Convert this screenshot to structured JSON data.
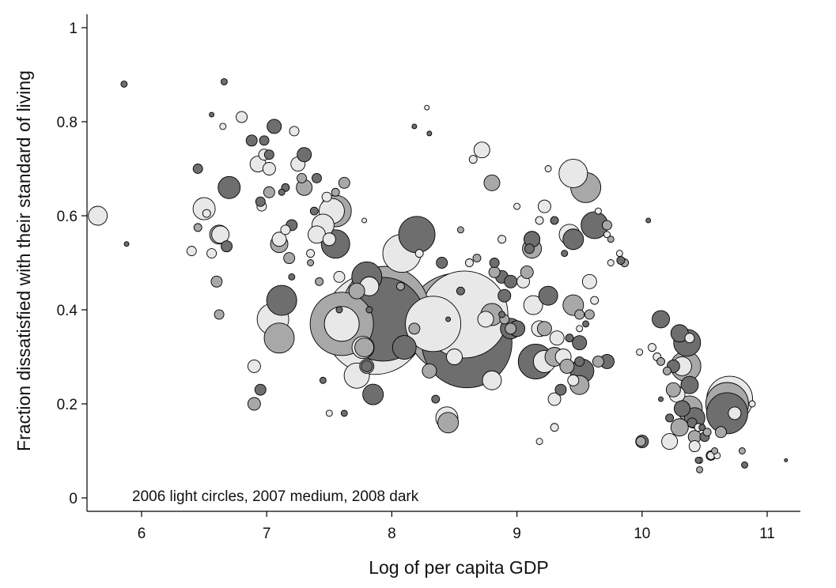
{
  "chart_data": {
    "type": "scatter",
    "title": "",
    "xlabel": "Log of per capita GDP",
    "ylabel": "Fraction dissatisfied with their standard of living",
    "annotation": "2006 light circles, 2007 medium, 2008 dark",
    "xlim": [
      5.6,
      11.3
    ],
    "ylim": [
      -0.03,
      1.03
    ],
    "xticks": [
      6,
      7,
      8,
      9,
      10,
      11
    ],
    "yticks": [
      0,
      0.2,
      0.4,
      0.6,
      0.8,
      1
    ],
    "ytick_labels": [
      "0",
      "0.2",
      "0.4",
      "0.6",
      "0.8",
      "1"
    ],
    "grid": false,
    "bubble_size_encoding": "population",
    "series": [
      {
        "name": "2006",
        "color": "#e8e8e8",
        "points": [
          [
            5.65,
            0.6,
            12
          ],
          [
            6.5,
            0.615,
            14
          ],
          [
            6.52,
            0.605,
            5
          ],
          [
            6.63,
            0.56,
            11
          ],
          [
            6.56,
            0.52,
            6
          ],
          [
            6.4,
            0.525,
            6
          ],
          [
            6.8,
            0.81,
            7
          ],
          [
            6.65,
            0.79,
            4
          ],
          [
            6.93,
            0.71,
            10
          ],
          [
            6.98,
            0.73,
            7
          ],
          [
            7.02,
            0.7,
            8
          ],
          [
            6.96,
            0.62,
            6
          ],
          [
            7.1,
            0.55,
            9
          ],
          [
            7.15,
            0.57,
            6
          ],
          [
            7.22,
            0.78,
            6
          ],
          [
            7.25,
            0.71,
            9
          ],
          [
            7.35,
            0.52,
            5
          ],
          [
            7.4,
            0.56,
            11
          ],
          [
            7.45,
            0.58,
            14
          ],
          [
            7.5,
            0.55,
            8
          ],
          [
            7.48,
            0.64,
            6
          ],
          [
            7.52,
            0.61,
            16
          ],
          [
            7.58,
            0.47,
            7
          ],
          [
            7.05,
            0.38,
            20
          ],
          [
            6.9,
            0.28,
            8
          ],
          [
            7.86,
            0.37,
            64
          ],
          [
            7.6,
            0.37,
            22
          ],
          [
            7.77,
            0.32,
            14
          ],
          [
            7.72,
            0.26,
            16
          ],
          [
            7.82,
            0.45,
            12
          ],
          [
            7.5,
            0.18,
            4
          ],
          [
            7.78,
            0.59,
            3
          ],
          [
            8.08,
            0.52,
            24
          ],
          [
            8.28,
            0.83,
            3
          ],
          [
            8.22,
            0.52,
            5
          ],
          [
            8.33,
            0.37,
            35
          ],
          [
            8.58,
            0.39,
            55
          ],
          [
            8.44,
            0.17,
            14
          ],
          [
            8.5,
            0.3,
            10
          ],
          [
            8.62,
            0.5,
            5
          ],
          [
            8.75,
            0.38,
            10
          ],
          [
            8.8,
            0.25,
            12
          ],
          [
            8.65,
            0.72,
            5
          ],
          [
            8.72,
            0.74,
            10
          ],
          [
            8.88,
            0.55,
            5
          ],
          [
            9.0,
            0.62,
            4
          ],
          [
            9.05,
            0.46,
            8
          ],
          [
            9.13,
            0.41,
            12
          ],
          [
            9.18,
            0.36,
            10
          ],
          [
            9.22,
            0.29,
            14
          ],
          [
            9.25,
            0.7,
            4
          ],
          [
            9.22,
            0.62,
            8
          ],
          [
            9.18,
            0.59,
            5
          ],
          [
            9.12,
            0.55,
            10
          ],
          [
            9.32,
            0.34,
            9
          ],
          [
            9.37,
            0.3,
            10
          ],
          [
            9.42,
            0.56,
            13
          ],
          [
            9.45,
            0.25,
            7
          ],
          [
            9.5,
            0.36,
            4
          ],
          [
            9.45,
            0.69,
            18
          ],
          [
            9.58,
            0.46,
            9
          ],
          [
            9.62,
            0.42,
            5
          ],
          [
            9.65,
            0.61,
            4
          ],
          [
            9.72,
            0.56,
            4
          ],
          [
            9.82,
            0.52,
            4
          ],
          [
            9.75,
            0.5,
            4
          ],
          [
            9.18,
            0.12,
            4
          ],
          [
            9.3,
            0.15,
            5
          ],
          [
            9.3,
            0.21,
            8
          ],
          [
            9.98,
            0.31,
            4
          ],
          [
            10.08,
            0.32,
            5
          ],
          [
            10.12,
            0.3,
            5
          ],
          [
            10.22,
            0.12,
            10
          ],
          [
            10.28,
            0.22,
            10
          ],
          [
            10.32,
            0.28,
            12
          ],
          [
            10.38,
            0.34,
            6
          ],
          [
            10.45,
            0.15,
            5
          ],
          [
            10.42,
            0.11,
            7
          ],
          [
            10.55,
            0.09,
            5
          ],
          [
            10.6,
            0.09,
            4
          ],
          [
            10.7,
            0.21,
            29
          ],
          [
            10.74,
            0.18,
            8
          ],
          [
            10.88,
            0.2,
            4
          ],
          [
            10.46,
            0.08,
            4
          ]
        ]
      },
      {
        "name": "2007",
        "color": "#a8a8a8",
        "points": [
          [
            6.45,
            0.575,
            5
          ],
          [
            6.62,
            0.56,
            12
          ],
          [
            6.6,
            0.46,
            7
          ],
          [
            6.62,
            0.39,
            6
          ],
          [
            7.1,
            0.54,
            11
          ],
          [
            7.18,
            0.51,
            7
          ],
          [
            7.3,
            0.66,
            10
          ],
          [
            7.28,
            0.68,
            6
          ],
          [
            7.02,
            0.65,
            7
          ],
          [
            7.1,
            0.34,
            19
          ],
          [
            6.9,
            0.2,
            8
          ],
          [
            7.35,
            0.5,
            4
          ],
          [
            7.55,
            0.61,
            20
          ],
          [
            7.42,
            0.46,
            5
          ],
          [
            7.62,
            0.67,
            7
          ],
          [
            7.55,
            0.65,
            5
          ],
          [
            7.78,
            0.32,
            12
          ],
          [
            7.8,
            0.28,
            9
          ],
          [
            7.6,
            0.37,
            40
          ],
          [
            7.72,
            0.44,
            10
          ],
          [
            7.95,
            0.4,
            55
          ],
          [
            8.07,
            0.45,
            5
          ],
          [
            8.18,
            0.36,
            7
          ],
          [
            8.3,
            0.27,
            9
          ],
          [
            8.52,
            0.37,
            64
          ],
          [
            8.45,
            0.16,
            13
          ],
          [
            8.55,
            0.57,
            4
          ],
          [
            8.68,
            0.51,
            5
          ],
          [
            8.82,
            0.48,
            7
          ],
          [
            8.8,
            0.67,
            10
          ],
          [
            8.8,
            0.39,
            14
          ],
          [
            8.9,
            0.38,
            6
          ],
          [
            8.95,
            0.36,
            7
          ],
          [
            9.08,
            0.48,
            8
          ],
          [
            9.12,
            0.53,
            12
          ],
          [
            9.22,
            0.36,
            9
          ],
          [
            9.3,
            0.3,
            12
          ],
          [
            9.4,
            0.28,
            9
          ],
          [
            9.45,
            0.41,
            13
          ],
          [
            9.5,
            0.39,
            6
          ],
          [
            9.55,
            0.66,
            19
          ],
          [
            9.5,
            0.24,
            12
          ],
          [
            9.58,
            0.39,
            6
          ],
          [
            9.65,
            0.29,
            7
          ],
          [
            9.72,
            0.58,
            6
          ],
          [
            9.75,
            0.55,
            4
          ],
          [
            9.86,
            0.5,
            5
          ],
          [
            9.99,
            0.12,
            6
          ],
          [
            10.15,
            0.29,
            5
          ],
          [
            10.2,
            0.27,
            5
          ],
          [
            10.25,
            0.23,
            9
          ],
          [
            10.3,
            0.15,
            11
          ],
          [
            10.35,
            0.28,
            19
          ],
          [
            10.38,
            0.19,
            16
          ],
          [
            10.42,
            0.13,
            8
          ],
          [
            10.46,
            0.06,
            4
          ],
          [
            10.52,
            0.14,
            5
          ],
          [
            10.58,
            0.1,
            4
          ],
          [
            10.63,
            0.14,
            7
          ],
          [
            10.68,
            0.2,
            27
          ],
          [
            10.8,
            0.1,
            4
          ]
        ]
      },
      {
        "name": "2008",
        "color": "#6e6e6e",
        "points": [
          [
            5.86,
            0.88,
            4
          ],
          [
            5.88,
            0.54,
            3
          ],
          [
            6.45,
            0.7,
            6
          ],
          [
            6.56,
            0.815,
            3
          ],
          [
            6.66,
            0.885,
            4
          ],
          [
            6.7,
            0.66,
            14
          ],
          [
            6.68,
            0.535,
            7
          ],
          [
            6.88,
            0.76,
            7
          ],
          [
            6.95,
            0.63,
            6
          ],
          [
            6.98,
            0.76,
            6
          ],
          [
            7.02,
            0.73,
            6
          ],
          [
            7.06,
            0.79,
            9
          ],
          [
            7.12,
            0.42,
            19
          ],
          [
            7.12,
            0.65,
            4
          ],
          [
            7.15,
            0.66,
            5
          ],
          [
            7.2,
            0.58,
            7
          ],
          [
            7.2,
            0.47,
            4
          ],
          [
            7.3,
            0.73,
            9
          ],
          [
            7.38,
            0.61,
            5
          ],
          [
            7.4,
            0.68,
            6
          ],
          [
            7.55,
            0.54,
            18
          ],
          [
            7.62,
            0.18,
            4
          ],
          [
            7.58,
            0.4,
            4
          ],
          [
            7.45,
            0.25,
            4
          ],
          [
            6.95,
            0.23,
            7
          ],
          [
            7.8,
            0.47,
            19
          ],
          [
            7.82,
            0.4,
            4
          ],
          [
            7.85,
            0.22,
            13
          ],
          [
            7.8,
            0.28,
            7
          ],
          [
            7.93,
            0.38,
            53
          ],
          [
            8.1,
            0.32,
            15
          ],
          [
            8.18,
            0.79,
            3
          ],
          [
            8.2,
            0.56,
            23
          ],
          [
            8.3,
            0.775,
            3
          ],
          [
            8.35,
            0.21,
            5
          ],
          [
            8.4,
            0.5,
            7
          ],
          [
            8.45,
            0.38,
            3
          ],
          [
            8.55,
            0.44,
            5
          ],
          [
            8.6,
            0.33,
            57
          ],
          [
            8.82,
            0.5,
            6
          ],
          [
            8.88,
            0.47,
            8
          ],
          [
            8.9,
            0.43,
            8
          ],
          [
            8.88,
            0.39,
            4
          ],
          [
            8.95,
            0.46,
            8
          ],
          [
            8.95,
            0.36,
            13
          ],
          [
            9.0,
            0.36,
            10
          ],
          [
            9.1,
            0.53,
            6
          ],
          [
            9.12,
            0.55,
            10
          ],
          [
            9.15,
            0.29,
            22
          ],
          [
            9.25,
            0.43,
            12
          ],
          [
            9.3,
            0.59,
            5
          ],
          [
            9.35,
            0.23,
            7
          ],
          [
            9.38,
            0.52,
            4
          ],
          [
            9.42,
            0.34,
            5
          ],
          [
            9.45,
            0.55,
            13
          ],
          [
            9.5,
            0.33,
            9
          ],
          [
            9.5,
            0.29,
            6
          ],
          [
            9.52,
            0.27,
            15
          ],
          [
            9.55,
            0.37,
            4
          ],
          [
            9.62,
            0.58,
            17
          ],
          [
            9.72,
            0.29,
            9
          ],
          [
            9.83,
            0.505,
            5
          ],
          [
            10.0,
            0.12,
            8
          ],
          [
            10.05,
            0.59,
            3
          ],
          [
            10.15,
            0.38,
            11
          ],
          [
            10.25,
            0.28,
            8
          ],
          [
            10.3,
            0.35,
            11
          ],
          [
            10.36,
            0.33,
            17
          ],
          [
            10.38,
            0.24,
            11
          ],
          [
            10.32,
            0.19,
            10
          ],
          [
            10.4,
            0.16,
            6
          ],
          [
            10.45,
            0.08,
            4
          ],
          [
            10.5,
            0.13,
            6
          ],
          [
            10.42,
            0.17,
            13
          ],
          [
            10.48,
            0.15,
            4
          ],
          [
            10.55,
            0.09,
            6
          ],
          [
            10.68,
            0.18,
            26
          ],
          [
            10.82,
            0.07,
            4
          ],
          [
            11.15,
            0.08,
            2
          ],
          [
            10.15,
            0.21,
            3
          ],
          [
            10.22,
            0.17,
            5
          ]
        ]
      }
    ]
  }
}
